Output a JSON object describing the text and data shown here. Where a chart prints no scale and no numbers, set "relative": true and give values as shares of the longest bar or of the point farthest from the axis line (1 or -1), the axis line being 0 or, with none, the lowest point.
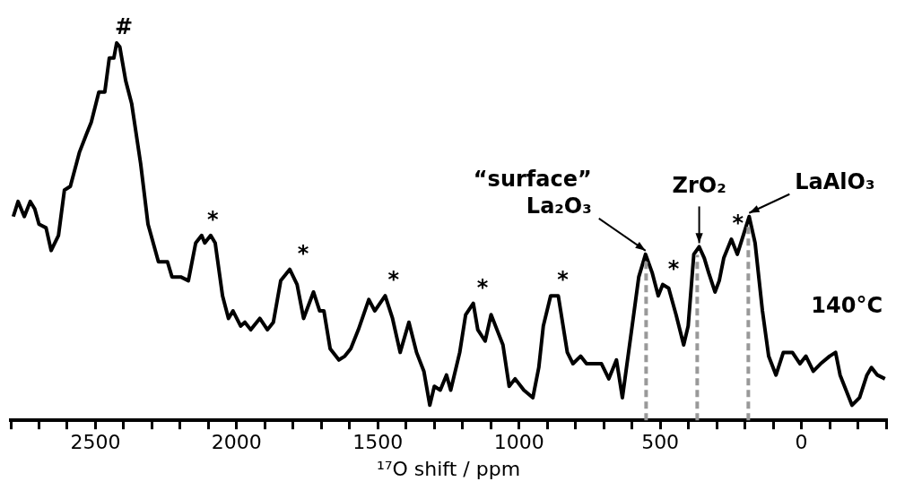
{
  "chart_data": {
    "type": "line",
    "relative": true,
    "xlabel": "¹⁷O shift / ppm",
    "xlim": [
      2800,
      -300
    ],
    "xticks": [
      {
        "value": 2800,
        "label": null
      },
      {
        "value": 2700,
        "label": null
      },
      {
        "value": 2600,
        "label": null
      },
      2500,
      {
        "value": 2400,
        "label": null
      },
      {
        "value": 2300,
        "label": null
      },
      {
        "value": 2200,
        "label": null
      },
      {
        "value": 2100,
        "label": null
      },
      2000,
      {
        "value": 1900,
        "label": null
      },
      {
        "value": 1800,
        "label": null
      },
      {
        "value": 1700,
        "label": null
      },
      {
        "value": 1600,
        "label": null
      },
      1500,
      {
        "value": 1400,
        "label": null
      },
      {
        "value": 1300,
        "label": null
      },
      {
        "value": 1200,
        "label": null
      },
      {
        "value": 1100,
        "label": null
      },
      1000,
      {
        "value": 900,
        "label": null
      },
      {
        "value": 800,
        "label": null
      },
      {
        "value": 700,
        "label": null
      },
      {
        "value": 600,
        "label": null
      },
      500,
      {
        "value": 400,
        "label": null
      },
      {
        "value": 300,
        "label": null
      },
      {
        "value": 200,
        "label": null
      },
      {
        "value": 100,
        "label": null
      },
      0,
      {
        "value": -100,
        "label": null
      },
      {
        "value": -200,
        "label": null
      },
      {
        "value": -300,
        "label": null
      }
    ],
    "series": [
      {
        "color": "#000000",
        "x": [
          2791,
          2774,
          2752,
          2731,
          2715,
          2700,
          2675,
          2657,
          2631,
          2610,
          2589,
          2557,
          2531,
          2515,
          2488,
          2467,
          2451,
          2435,
          2425,
          2414,
          2393,
          2372,
          2340,
          2314,
          2277,
          2245,
          2229,
          2198,
          2171,
          2145,
          2124,
          2113,
          2092,
          2076,
          2050,
          2029,
          2013,
          1986,
          1971,
          1950,
          1918,
          1891,
          1870,
          1844,
          1812,
          1786,
          1763,
          1728,
          1706,
          1691,
          1669,
          1638,
          1617,
          1596,
          1569,
          1532,
          1511,
          1474,
          1448,
          1421,
          1390,
          1363,
          1337,
          1316,
          1300,
          1279,
          1257,
          1242,
          1210,
          1189,
          1162,
          1146,
          1120,
          1099,
          1078,
          1057,
          1035,
          1014,
          983,
          951,
          930,
          914,
          888,
          861,
          829,
          809,
          782,
          761,
          740,
          708,
          682,
          655,
          634,
          603,
          576,
          552,
          528,
          507,
          491,
          470,
          444,
          417,
          401,
          381,
          362,
          344,
          328,
          306,
          291,
          275,
          248,
          227,
          206,
          185,
          164,
          138,
          116,
          90,
          64,
          32,
          5,
          -16,
          -42,
          -68,
          -100,
          -121,
          -137,
          -158,
          -179,
          -206,
          -232,
          -248,
          -269,
          -296
        ],
        "values": [
          0.54,
          0.58,
          0.54,
          0.58,
          0.56,
          0.52,
          0.51,
          0.45,
          0.49,
          0.61,
          0.62,
          0.71,
          0.76,
          0.79,
          0.87,
          0.87,
          0.96,
          0.96,
          1.0,
          0.99,
          0.9,
          0.84,
          0.68,
          0.52,
          0.42,
          0.42,
          0.38,
          0.38,
          0.37,
          0.47,
          0.49,
          0.47,
          0.49,
          0.47,
          0.33,
          0.27,
          0.29,
          0.25,
          0.26,
          0.24,
          0.27,
          0.24,
          0.26,
          0.37,
          0.4,
          0.36,
          0.27,
          0.34,
          0.29,
          0.29,
          0.19,
          0.16,
          0.17,
          0.19,
          0.24,
          0.32,
          0.29,
          0.33,
          0.27,
          0.18,
          0.26,
          0.18,
          0.13,
          0.04,
          0.09,
          0.08,
          0.12,
          0.08,
          0.18,
          0.28,
          0.31,
          0.24,
          0.21,
          0.28,
          0.24,
          0.2,
          0.09,
          0.11,
          0.08,
          0.06,
          0.14,
          0.25,
          0.33,
          0.33,
          0.18,
          0.15,
          0.17,
          0.15,
          0.15,
          0.15,
          0.11,
          0.16,
          0.06,
          0.23,
          0.38,
          0.44,
          0.39,
          0.33,
          0.36,
          0.35,
          0.28,
          0.2,
          0.25,
          0.44,
          0.46,
          0.43,
          0.39,
          0.34,
          0.37,
          0.43,
          0.48,
          0.44,
          0.49,
          0.54,
          0.47,
          0.29,
          0.17,
          0.12,
          0.18,
          0.18,
          0.15,
          0.17,
          0.13,
          0.15,
          0.17,
          0.18,
          0.12,
          0.08,
          0.04,
          0.06,
          0.12,
          0.14,
          0.12,
          0.11
        ]
      }
    ],
    "ref_lines": [
      {
        "axis": "x",
        "value": 550,
        "color": "#999999",
        "line_style": "dashed"
      },
      {
        "axis": "x",
        "value": 369,
        "color": "#999999",
        "line_style": "dashed"
      },
      {
        "axis": "x",
        "value": 188,
        "color": "#999999",
        "line_style": "dashed"
      }
    ],
    "annotations": [
      {
        "text": "#",
        "x": 2425,
        "y": 1.0
      },
      {
        "text": "*",
        "x": 2110,
        "y": 0.49
      },
      {
        "text": "*",
        "x": 1790,
        "y": 0.4
      },
      {
        "text": "*",
        "x": 1470,
        "y": 0.33
      },
      {
        "text": "*",
        "x": 1155,
        "y": 0.31
      },
      {
        "text": "*",
        "x": 870,
        "y": 0.33
      },
      {
        "text": "*",
        "x": 478,
        "y": 0.36
      },
      {
        "text": "*",
        "x": 250,
        "y": 0.48
      },
      {
        "text": "“surface”\nLa₂O₃",
        "x": 552,
        "y": 0.44
      },
      {
        "text": "ZrO₂",
        "x": 362,
        "y": 0.46
      },
      {
        "text": "LaAlO₃",
        "x": 185,
        "y": 0.54
      },
      "140°C"
    ]
  }
}
